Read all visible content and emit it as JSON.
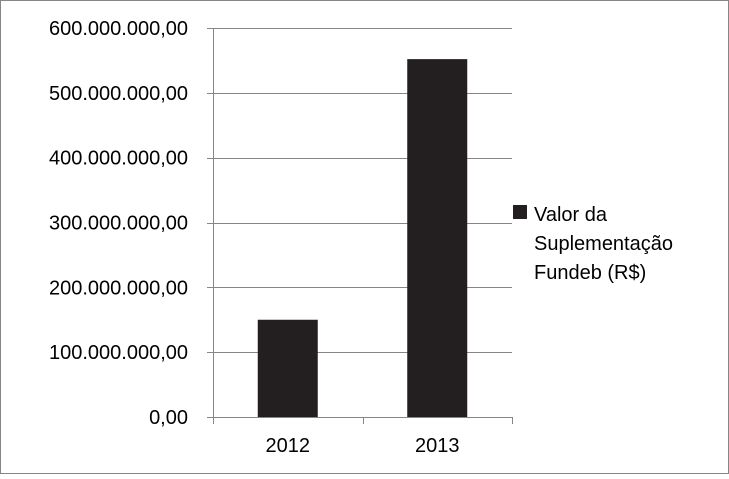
{
  "chart_data": {
    "type": "bar",
    "title": "",
    "xlabel": "",
    "ylabel": "",
    "categories": [
      "2012",
      "2013"
    ],
    "series": [
      {
        "name": "Valor da Suplementação Fundeb (R$)",
        "values": [
          150000000,
          552000000
        ],
        "color": "#231f20"
      }
    ],
    "ylim": [
      0,
      600000000
    ],
    "y_ticks": [
      0,
      100000000,
      200000000,
      300000000,
      400000000,
      500000000,
      600000000
    ],
    "y_tick_labels": [
      "0,00",
      "100.000.000,00",
      "200.000.000,00",
      "300.000.000,00",
      "400.000.000,00",
      "500.000.000,00",
      "600.000.000,00"
    ],
    "grid": true,
    "legend_position": "right",
    "legend_lines": [
      "Valor da",
      "Suplementação",
      "Fundeb (R$)"
    ],
    "colors": {
      "bar": "#231f20",
      "grid": "#868686",
      "axis": "#868686",
      "frame": "#868686"
    }
  }
}
